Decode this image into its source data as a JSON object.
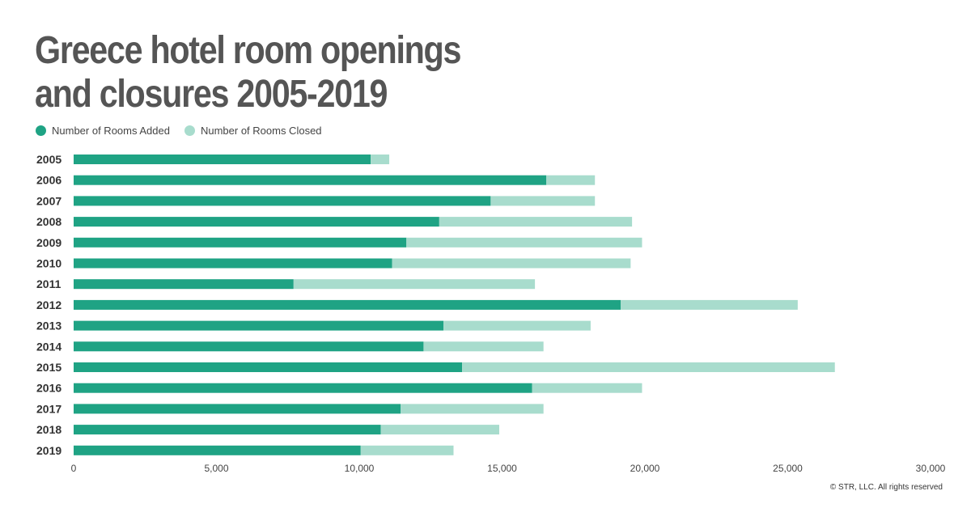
{
  "title_line1": "Greece hotel room openings",
  "title_line2": "and closures 2005-2019",
  "footer": "© STR, LLC. All rights reserved",
  "colors": {
    "added": "#1fa384",
    "closed": "#a8dccd",
    "text": "#444444",
    "title": "#555555"
  },
  "chart_data": {
    "type": "bar",
    "orientation": "horizontal",
    "stacked": true,
    "categories": [
      "2005",
      "2006",
      "2007",
      "2008",
      "2009",
      "2010",
      "2011",
      "2012",
      "2013",
      "2014",
      "2015",
      "2016",
      "2017",
      "2018",
      "2019"
    ],
    "series": [
      {
        "name": "Number of Rooms Added",
        "values": [
          10400,
          16550,
          14600,
          12800,
          11650,
          11150,
          7700,
          19150,
          12950,
          12250,
          13600,
          16050,
          11450,
          10750,
          10050
        ]
      },
      {
        "name": "Number of Rooms Closed",
        "values": [
          650,
          1700,
          3650,
          6750,
          8250,
          8350,
          8450,
          6200,
          5150,
          4200,
          13050,
          3850,
          5000,
          4150,
          3250
        ]
      }
    ],
    "xlim": [
      0,
      30000
    ],
    "xticks": [
      0,
      5000,
      10000,
      15000,
      20000,
      25000,
      30000
    ],
    "xtick_labels": [
      "0",
      "5,000",
      "10,000",
      "15,000",
      "20,000",
      "25,000",
      "30,000"
    ],
    "legend_position": "top-left",
    "grid": false
  }
}
